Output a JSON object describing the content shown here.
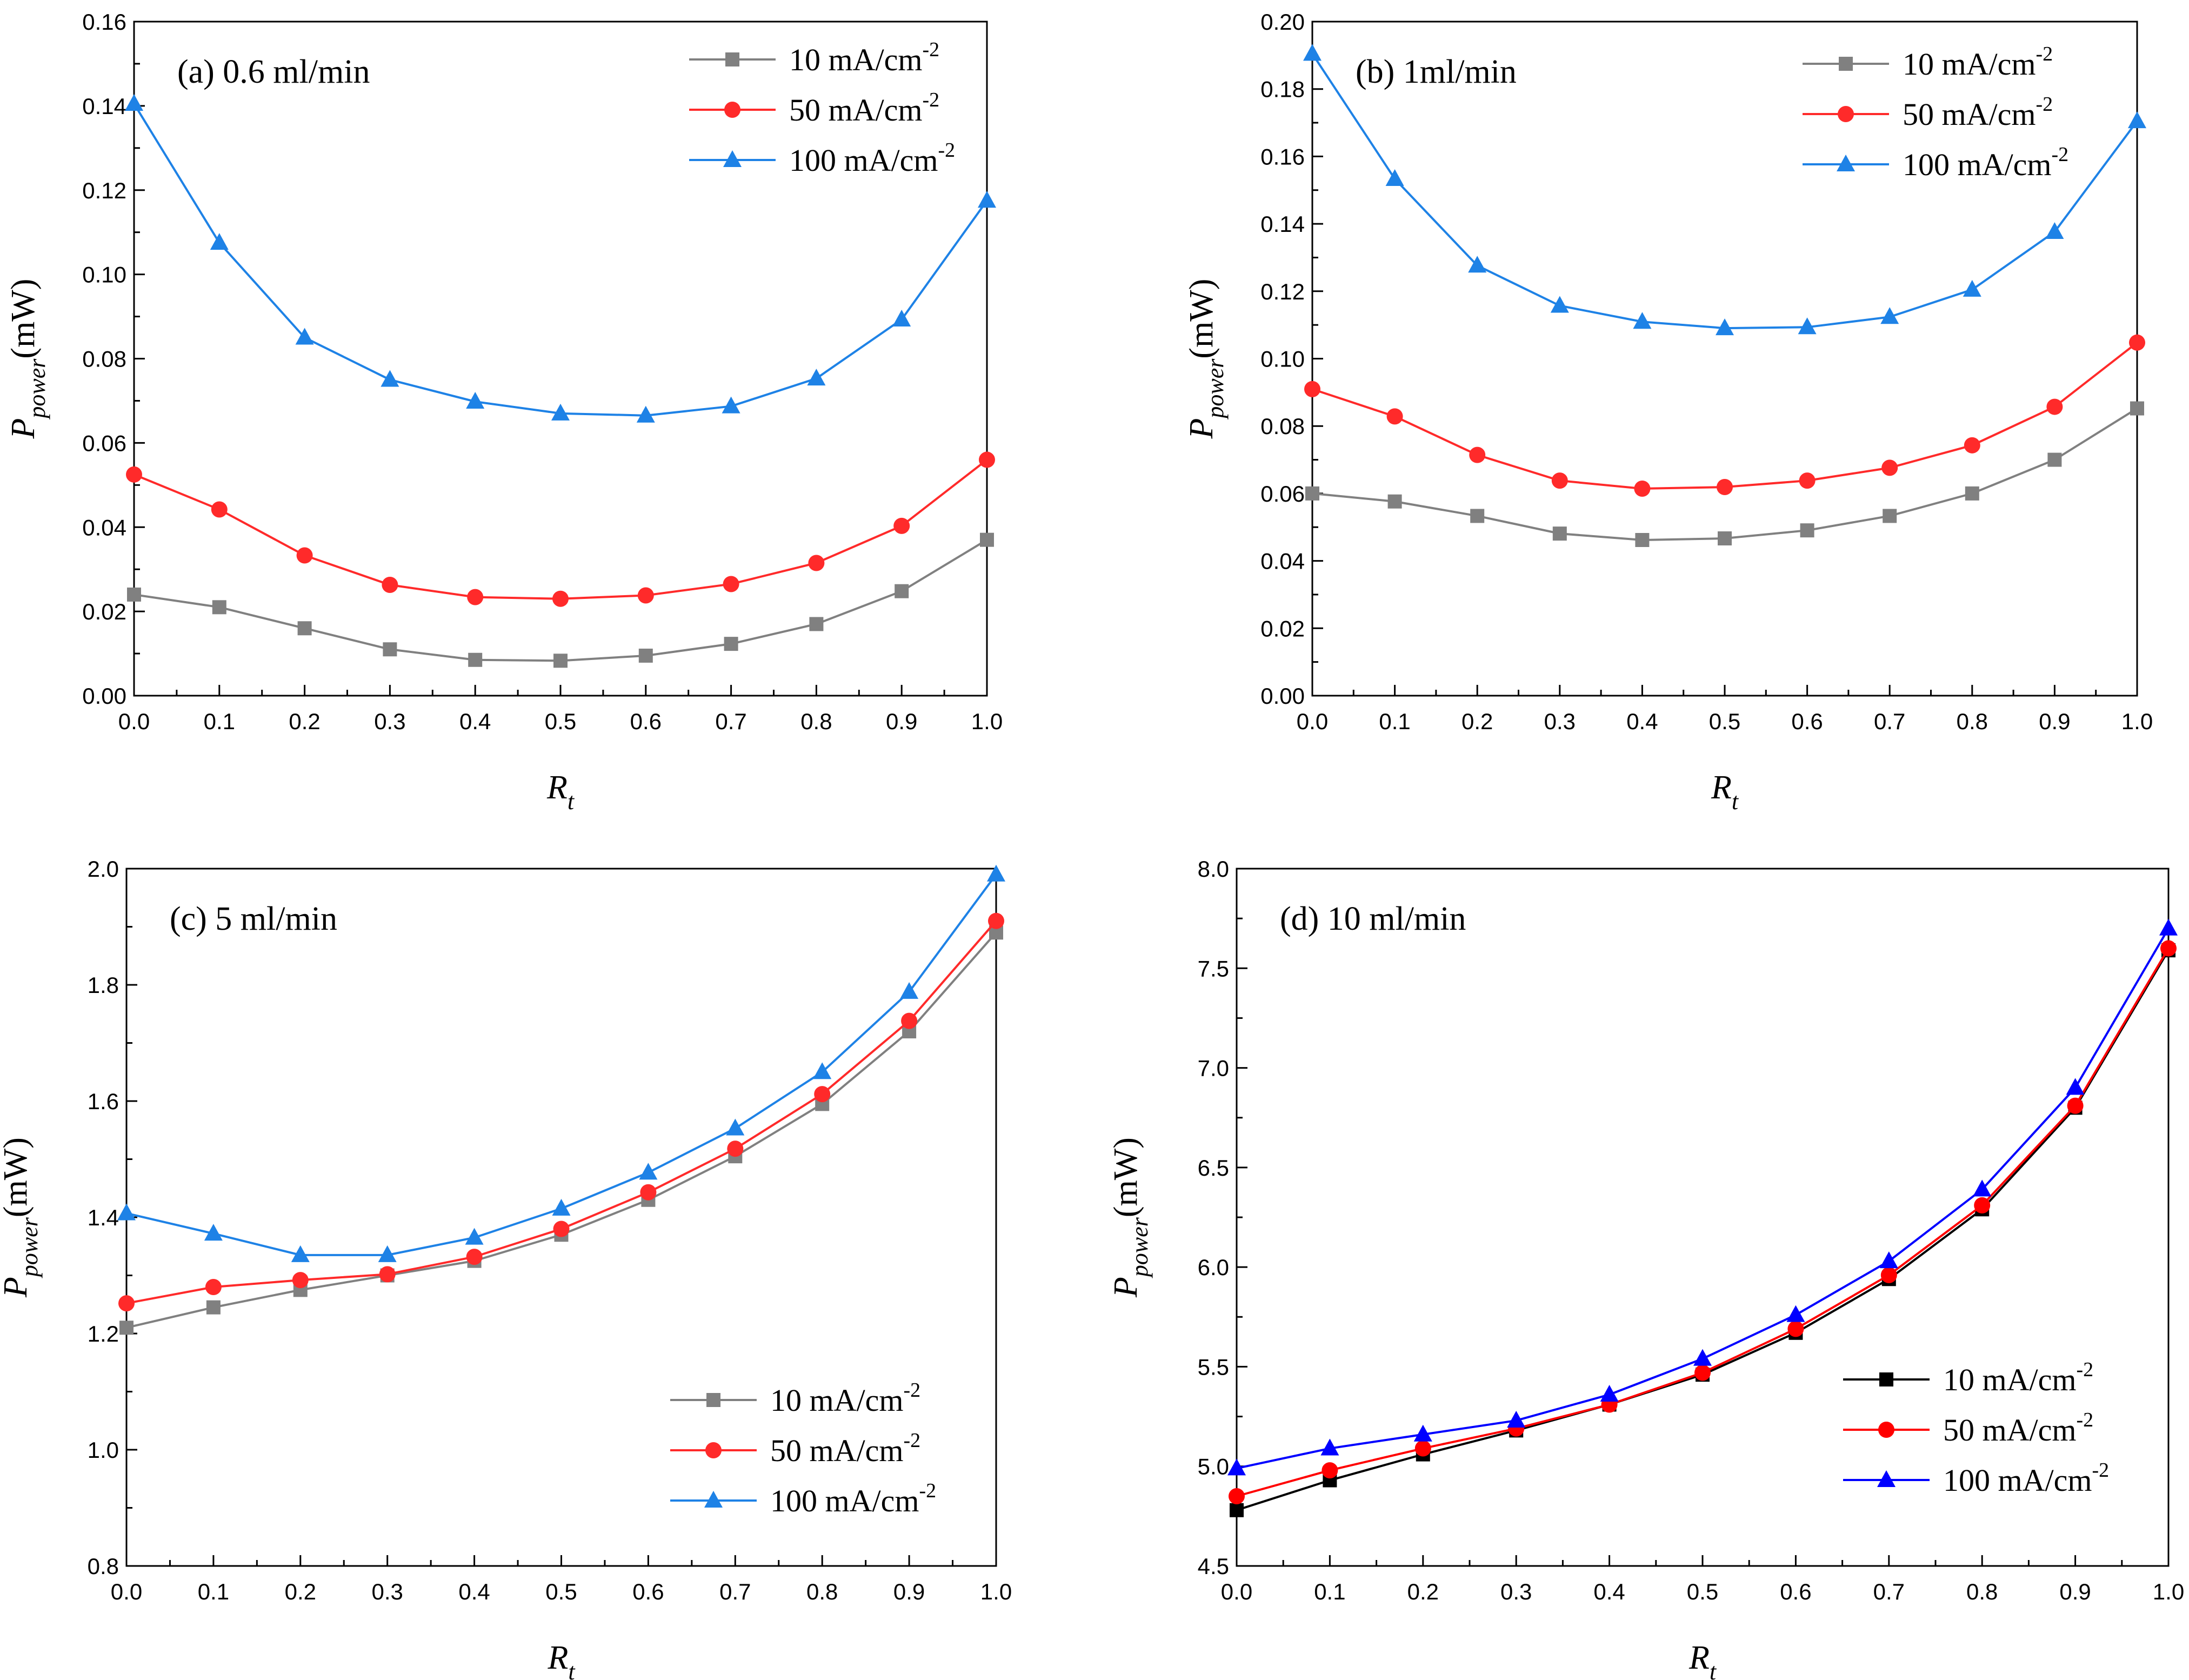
{
  "figure": {
    "units_label": "(mW)",
    "legend_sup": "-2"
  },
  "chart_data": [
    {
      "type": "line",
      "panel": "a",
      "title": "(a) 0.6 ml/min",
      "xlabel": "R",
      "xlabel_sub": "t",
      "ylabel": "P",
      "ylabel_sub": "power",
      "ylabel_unit": "(mW)",
      "xlim": [
        0,
        1
      ],
      "ylim": [
        0,
        0.16
      ],
      "xticks": [
        "0.0",
        "0.1",
        "0.2",
        "0.3",
        "0.4",
        "0.5",
        "0.6",
        "0.7",
        "0.8",
        "0.9",
        "1.0"
      ],
      "yticks": [
        "0.00",
        "0.02",
        "0.04",
        "0.06",
        "0.08",
        "0.10",
        "0.12",
        "0.14",
        "0.16"
      ],
      "legend_position": "top-right",
      "x": [
        0,
        0.1,
        0.2,
        0.3,
        0.4,
        0.5,
        0.6,
        0.7,
        0.8,
        0.9,
        1.0
      ],
      "series": [
        {
          "name": "10 mA/cm",
          "sup": "-2",
          "color": "#808080",
          "marker": "square",
          "values": [
            0.024,
            0.021,
            0.016,
            0.011,
            0.0085,
            0.0083,
            0.0095,
            0.0123,
            0.017,
            0.0248,
            0.037
          ]
        },
        {
          "name": "50 mA/cm",
          "sup": "-2",
          "color": "#ff2a2a",
          "marker": "circle",
          "values": [
            0.0525,
            0.0442,
            0.0333,
            0.0263,
            0.0234,
            0.023,
            0.0238,
            0.0265,
            0.0315,
            0.0403,
            0.056
          ]
        },
        {
          "name": "100 mA/cm",
          "sup": "-2",
          "color": "#1e82e6",
          "marker": "triangle",
          "values": [
            0.1405,
            0.1075,
            0.085,
            0.075,
            0.0698,
            0.067,
            0.0665,
            0.0687,
            0.0753,
            0.0893,
            0.1175
          ]
        }
      ]
    },
    {
      "type": "line",
      "panel": "b",
      "title": "(b) 1ml/min",
      "xlabel": "R",
      "xlabel_sub": "t",
      "ylabel": "P",
      "ylabel_sub": "power",
      "ylabel_unit": "(mW)",
      "xlim": [
        0,
        1
      ],
      "ylim": [
        0,
        0.21
      ],
      "xticks": [
        "0.0",
        "0.1",
        "0.2",
        "0.3",
        "0.4",
        "0.5",
        "0.6",
        "0.7",
        "0.8",
        "0.9",
        "1.0"
      ],
      "yticks": [
        "0.00",
        "0.02",
        "0.04",
        "0.06",
        "0.08",
        "0.10",
        "0.12",
        "0.14",
        "0.16",
        "0.18",
        "0.20"
      ],
      "legend_position": "top-right",
      "x": [
        0,
        0.1,
        0.2,
        0.3,
        0.4,
        0.5,
        0.6,
        0.7,
        0.8,
        0.9,
        1.0
      ],
      "series": [
        {
          "name": "10 mA/cm",
          "sup": "-2",
          "color": "#808080",
          "marker": "square",
          "values": [
            0.063,
            0.0605,
            0.056,
            0.0505,
            0.0485,
            0.049,
            0.0515,
            0.056,
            0.063,
            0.0735,
            0.0895
          ]
        },
        {
          "name": "50 mA/cm",
          "sup": "-2",
          "color": "#ff2a2a",
          "marker": "circle",
          "values": [
            0.0955,
            0.087,
            0.075,
            0.067,
            0.0645,
            0.065,
            0.067,
            0.071,
            0.078,
            0.09,
            0.11
          ]
        },
        {
          "name": "100 mA/cm",
          "sup": "-2",
          "color": "#1e82e6",
          "marker": "triangle",
          "values": [
            0.2,
            0.161,
            0.134,
            0.1215,
            0.1165,
            0.1145,
            0.1148,
            0.118,
            0.1265,
            0.1445,
            0.179
          ]
        }
      ]
    },
    {
      "type": "line",
      "panel": "c",
      "title": "(c) 5 ml/min",
      "xlabel": "R",
      "xlabel_sub": "t",
      "ylabel": "P",
      "ylabel_sub": "power",
      "ylabel_unit": "(mW)",
      "xlim": [
        0,
        1
      ],
      "ylim": [
        0.8,
        2.0
      ],
      "xticks": [
        "0.0",
        "0.1",
        "0.2",
        "0.3",
        "0.4",
        "0.5",
        "0.6",
        "0.7",
        "0.8",
        "0.9",
        "1.0"
      ],
      "yticks": [
        "0.8",
        "1.0",
        "1.2",
        "1.4",
        "1.6",
        "1.8",
        "2.0"
      ],
      "legend_position": "bottom-right",
      "x": [
        0,
        0.1,
        0.2,
        0.3,
        0.4,
        0.5,
        0.6,
        0.7,
        0.8,
        0.9,
        1.0
      ],
      "series": [
        {
          "name": "10 mA/cm",
          "sup": "-2",
          "color": "#808080",
          "marker": "square",
          "values": [
            1.21,
            1.245,
            1.275,
            1.3,
            1.325,
            1.37,
            1.43,
            1.505,
            1.595,
            1.72,
            1.89
          ]
        },
        {
          "name": "50 mA/cm",
          "sup": "-2",
          "color": "#ff2a2a",
          "marker": "circle",
          "values": [
            1.252,
            1.28,
            1.292,
            1.302,
            1.332,
            1.38,
            1.443,
            1.518,
            1.612,
            1.738,
            1.91
          ]
        },
        {
          "name": "100 mA/cm",
          "sup": "-2",
          "color": "#1e82e6",
          "marker": "triangle",
          "values": [
            1.407,
            1.372,
            1.335,
            1.335,
            1.365,
            1.415,
            1.477,
            1.553,
            1.65,
            1.788,
            1.99
          ]
        }
      ]
    },
    {
      "type": "line",
      "panel": "d",
      "title": "(d) 10 ml/min",
      "xlabel": "R",
      "xlabel_sub": "t",
      "ylabel": "P",
      "ylabel_sub": "power",
      "ylabel_unit": "(mW)",
      "xlim": [
        0,
        1
      ],
      "ylim": [
        4.5,
        8.0
      ],
      "xticks": [
        "0.0",
        "0.1",
        "0.2",
        "0.3",
        "0.4",
        "0.5",
        "0.6",
        "0.7",
        "0.8",
        "0.9",
        "1.0"
      ],
      "yticks": [
        "4.5",
        "5.0",
        "5.5",
        "6.0",
        "6.5",
        "7.0",
        "7.5",
        "8.0"
      ],
      "legend_position": "bottom-right",
      "x": [
        0,
        0.1,
        0.2,
        0.3,
        0.4,
        0.5,
        0.6,
        0.7,
        0.8,
        0.9,
        1.0
      ],
      "series": [
        {
          "name": "10 mA/cm",
          "sup": "-2",
          "color": "#000000",
          "marker": "square",
          "values": [
            4.78,
            4.93,
            5.06,
            5.18,
            5.31,
            5.46,
            5.67,
            5.94,
            6.29,
            6.8,
            7.59
          ]
        },
        {
          "name": "50 mA/cm",
          "sup": "-2",
          "color": "#ff0000",
          "marker": "circle",
          "values": [
            4.85,
            4.98,
            5.09,
            5.19,
            5.31,
            5.47,
            5.69,
            5.96,
            6.31,
            6.81,
            7.6
          ]
        },
        {
          "name": "100 mA/cm",
          "sup": "-2",
          "color": "#0000ff",
          "marker": "triangle",
          "values": [
            4.99,
            5.09,
            5.16,
            5.23,
            5.36,
            5.54,
            5.76,
            6.03,
            6.39,
            6.9,
            7.7
          ]
        }
      ]
    }
  ]
}
